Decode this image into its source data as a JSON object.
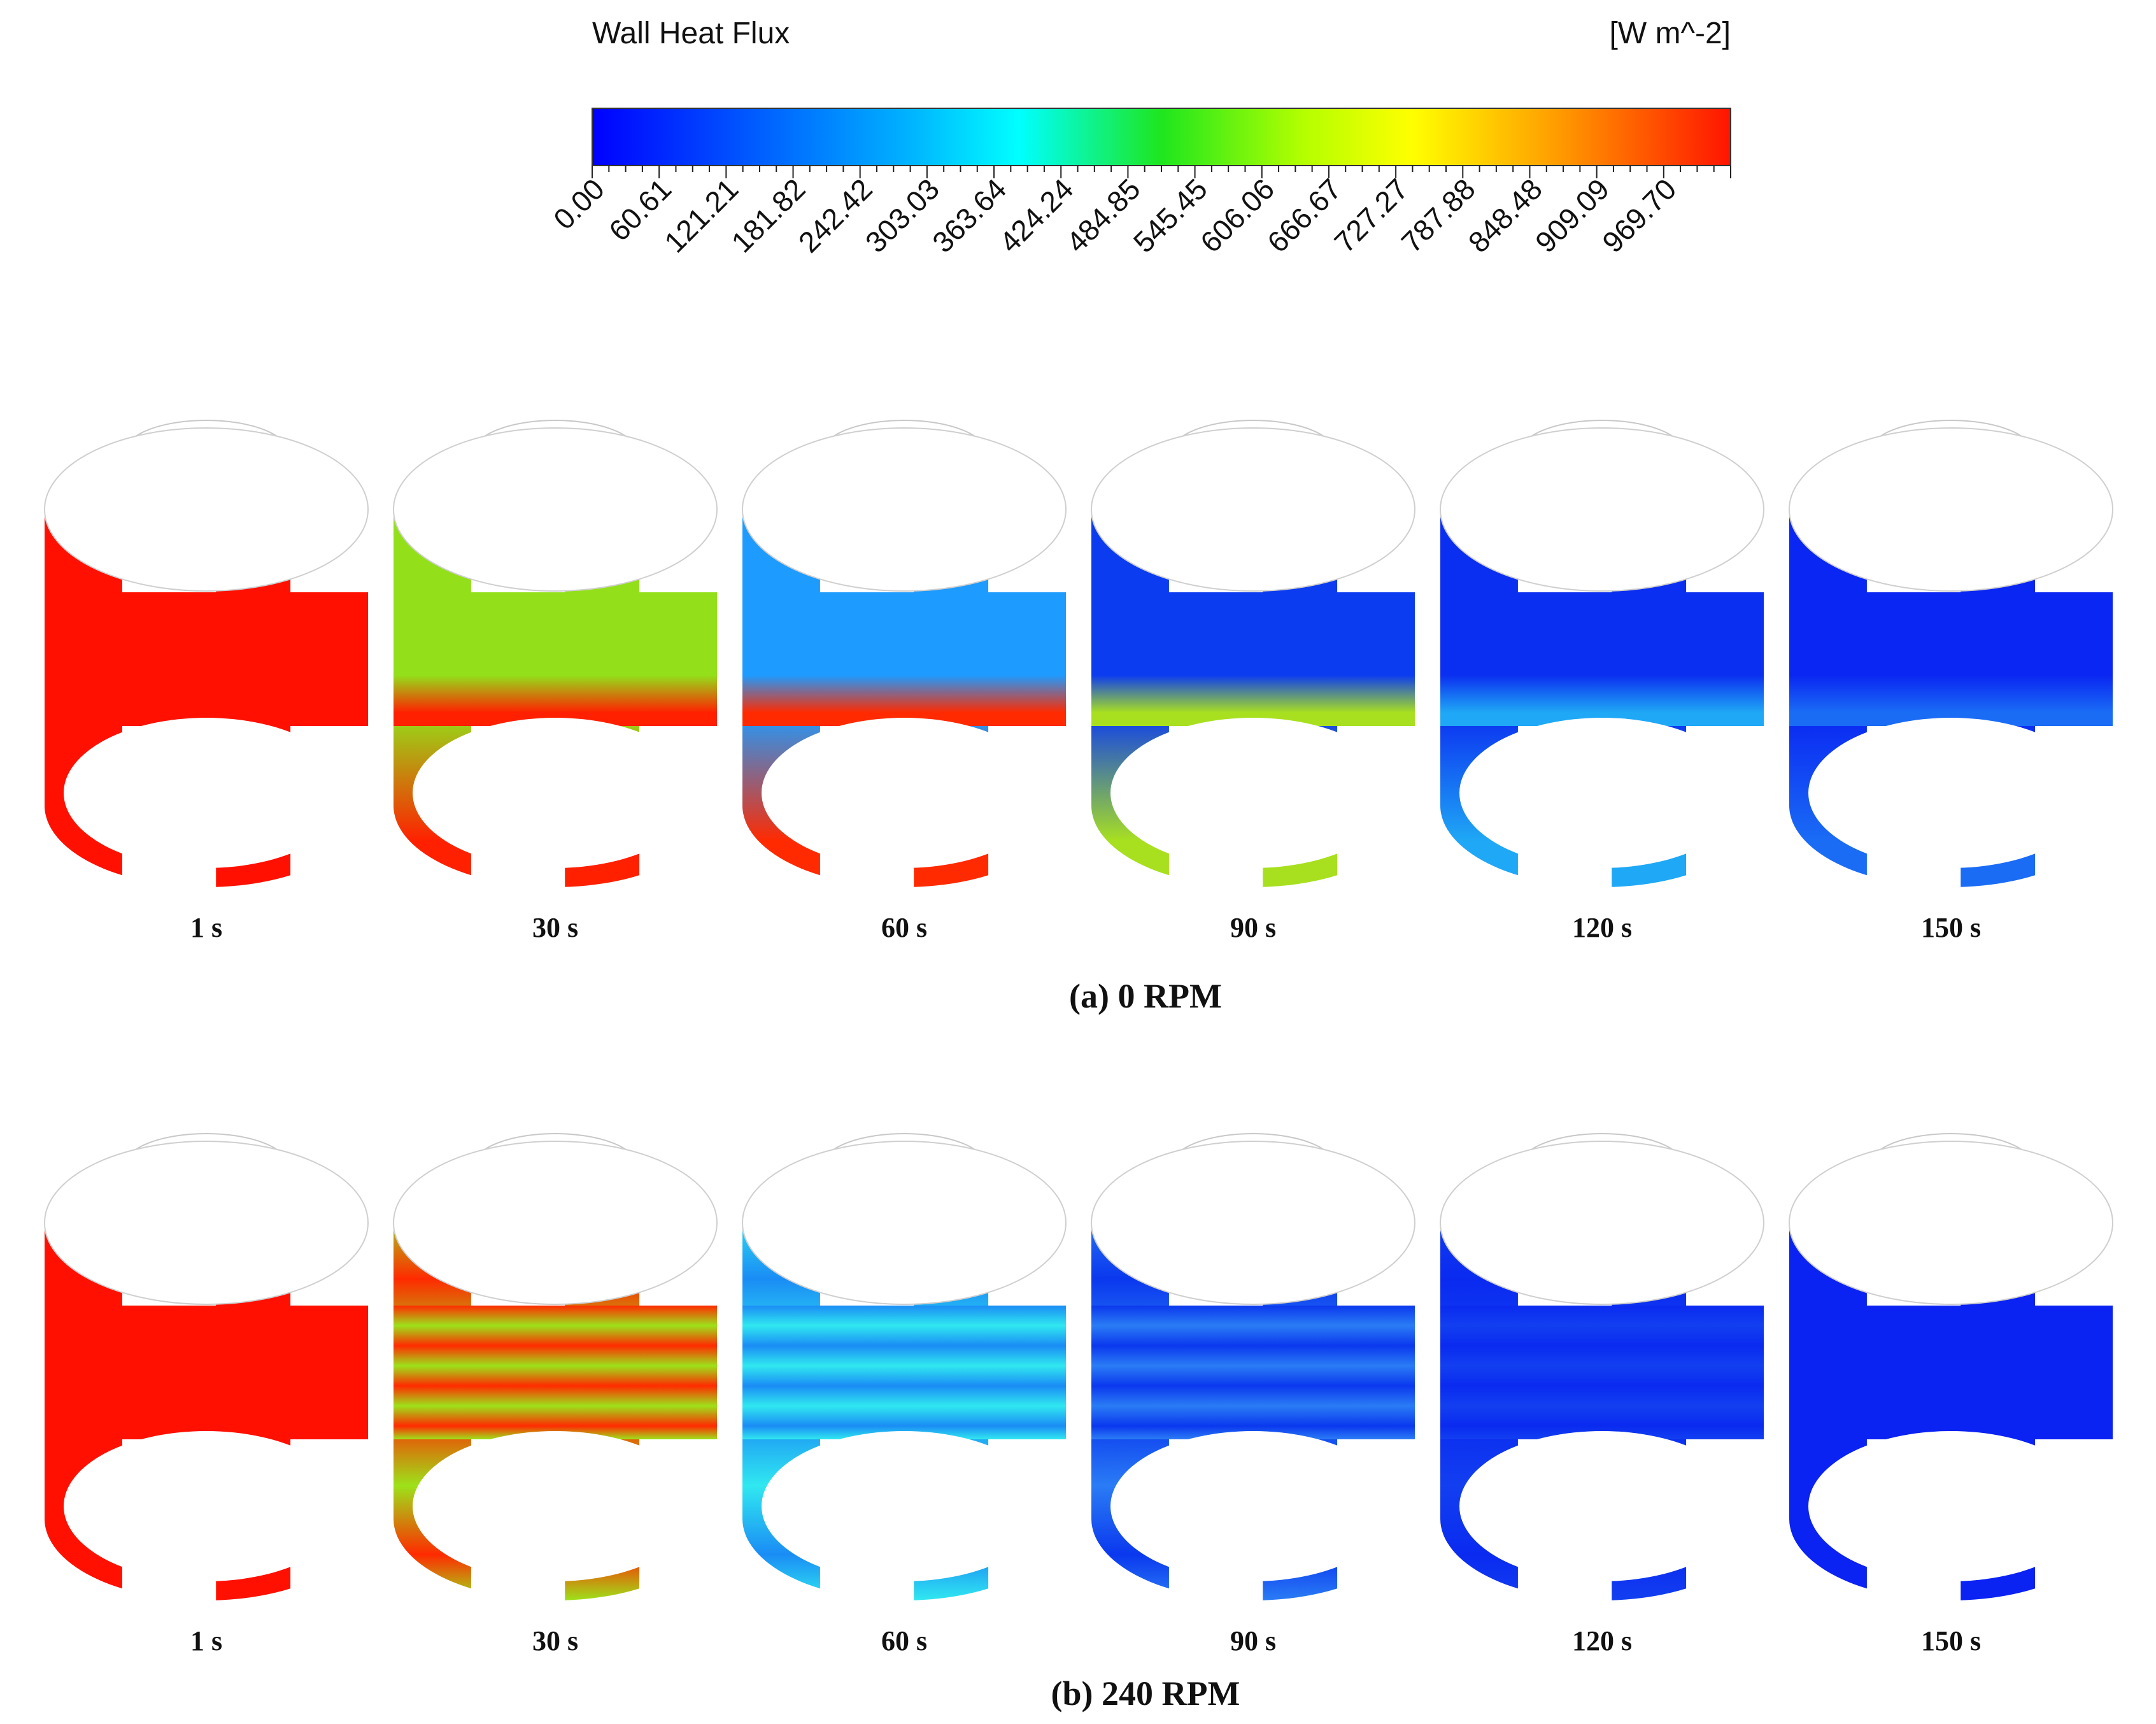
{
  "legend": {
    "title": "Wall Heat Flux",
    "unit": "[W m^-2]",
    "min": 0,
    "max": 1030,
    "ticks": [
      "0.00",
      "60.61",
      "121.21",
      "181.82",
      "242.42",
      "303.03",
      "363.64",
      "424.24",
      "484.85",
      "545.45",
      "606.06",
      "666.67",
      "727.27",
      "787.88",
      "848.48",
      "909.09",
      "969.70"
    ]
  },
  "panels": [
    {
      "caption": "(a) 0 RPM",
      "frames": [
        {
          "label": "1 s",
          "pattern": "uniform",
          "top": "#ff1000",
          "bottom": "#ff1000"
        },
        {
          "label": "30 s",
          "pattern": "banded",
          "top": "#93e01a",
          "bottom": "#ff2000"
        },
        {
          "label": "60 s",
          "pattern": "banded",
          "top": "#1e9bff",
          "bottom": "#ff2a00"
        },
        {
          "label": "90 s",
          "pattern": "banded",
          "top": "#0c3cf0",
          "bottom": "#a8e020"
        },
        {
          "label": "120 s",
          "pattern": "banded",
          "top": "#0b2ff0",
          "bottom": "#1fa8f5"
        },
        {
          "label": "150 s",
          "pattern": "banded",
          "top": "#0a26f2",
          "bottom": "#1a6cf5"
        }
      ]
    },
    {
      "caption": "(b) 240 RPM",
      "frames": [
        {
          "label": "1 s",
          "pattern": "uniform",
          "top": "#ff1000",
          "bottom": "#ff1000"
        },
        {
          "label": "30 s",
          "pattern": "swirl",
          "top": "#ff2a00",
          "bottom": "#9de21a"
        },
        {
          "label": "60 s",
          "pattern": "swirl",
          "top": "#1a8cf5",
          "bottom": "#30e8f0"
        },
        {
          "label": "90 s",
          "pattern": "swirl",
          "top": "#0a38ee",
          "bottom": "#2a7cf5"
        },
        {
          "label": "120 s",
          "pattern": "swirl",
          "top": "#0a2af0",
          "bottom": "#123ff0"
        },
        {
          "label": "150 s",
          "pattern": "uniform",
          "top": "#0a22f2",
          "bottom": "#0a22f2"
        }
      ]
    }
  ]
}
